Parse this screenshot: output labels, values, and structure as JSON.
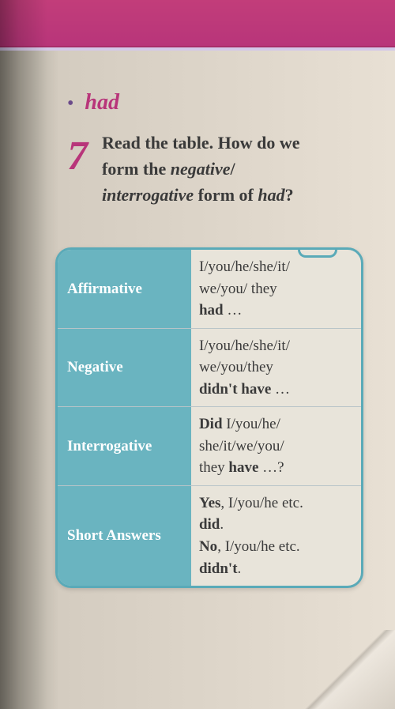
{
  "header": {
    "bar_color": "#b8357a",
    "divider_color": "#d4c8e8"
  },
  "heading": {
    "bullet": "•",
    "word": "had",
    "word_color": "#b8357a"
  },
  "exercise": {
    "number": "7",
    "line1": "Read the table. How do we",
    "line2a": "form the ",
    "line2b": "negative",
    "line2c": "/",
    "line3a": "interrogative",
    "line3b": " form of ",
    "line3c": "had",
    "line3d": "?"
  },
  "table": {
    "border_color": "#5aaab8",
    "header_bg": "#6ab4c0",
    "header_text_color": "#ffffff",
    "cell_bg": "#e8e4da",
    "cell_text_color": "#3a3a3a",
    "row_divider_color": "#b8c4c8",
    "rows": [
      {
        "label": "Affirmative",
        "l1": "I/you/he/she/it/",
        "l2": "we/you/ they",
        "l3a": "had",
        "l3b": " …"
      },
      {
        "label": "Negative",
        "l1": "I/you/he/she/it/",
        "l2": "we/you/they",
        "l3a": "didn't have",
        "l3b": " …"
      },
      {
        "label": "Interrogative",
        "l1a": "Did",
        "l1b": " I/you/he/",
        "l2": "she/it/we/you/",
        "l3a": "they ",
        "l3b": "have",
        "l3c": " …?"
      },
      {
        "label": "Short Answers",
        "l1a": "Yes",
        "l1b": ", I/you/he etc.",
        "l2a": "did",
        "l2b": ".",
        "l3a": "No",
        "l3b": ", I/you/he etc.",
        "l4a": "didn't",
        "l4b": "."
      }
    ]
  }
}
